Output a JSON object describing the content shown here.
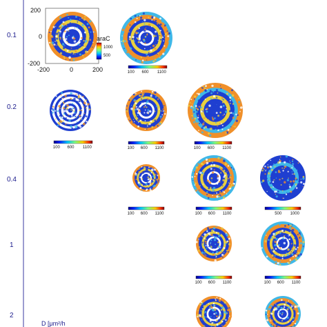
{
  "row_labels": [
    "0.1",
    "0.2",
    "0.4",
    "1",
    "2"
  ],
  "axis_label_d": "D [μm²/h",
  "inset": {
    "y_ticks": [
      "200",
      "0",
      "-200"
    ],
    "x_ticks": [
      "-200",
      "0",
      "200"
    ],
    "colorbar_label": "araC",
    "colorbar_ticks": [
      "1000",
      "500"
    ]
  },
  "colorbar_ticks_a": [
    "100",
    "600",
    "1100"
  ],
  "colorbar_ticks_b": [
    "500",
    "1000"
  ],
  "colors": {
    "blue": "#1f3fd0",
    "cyan": "#3fb8e8",
    "yellow": "#e8d040",
    "orange": "#f0902a",
    "white": "#ffffff",
    "row_label": "#1a1a8c"
  }
}
